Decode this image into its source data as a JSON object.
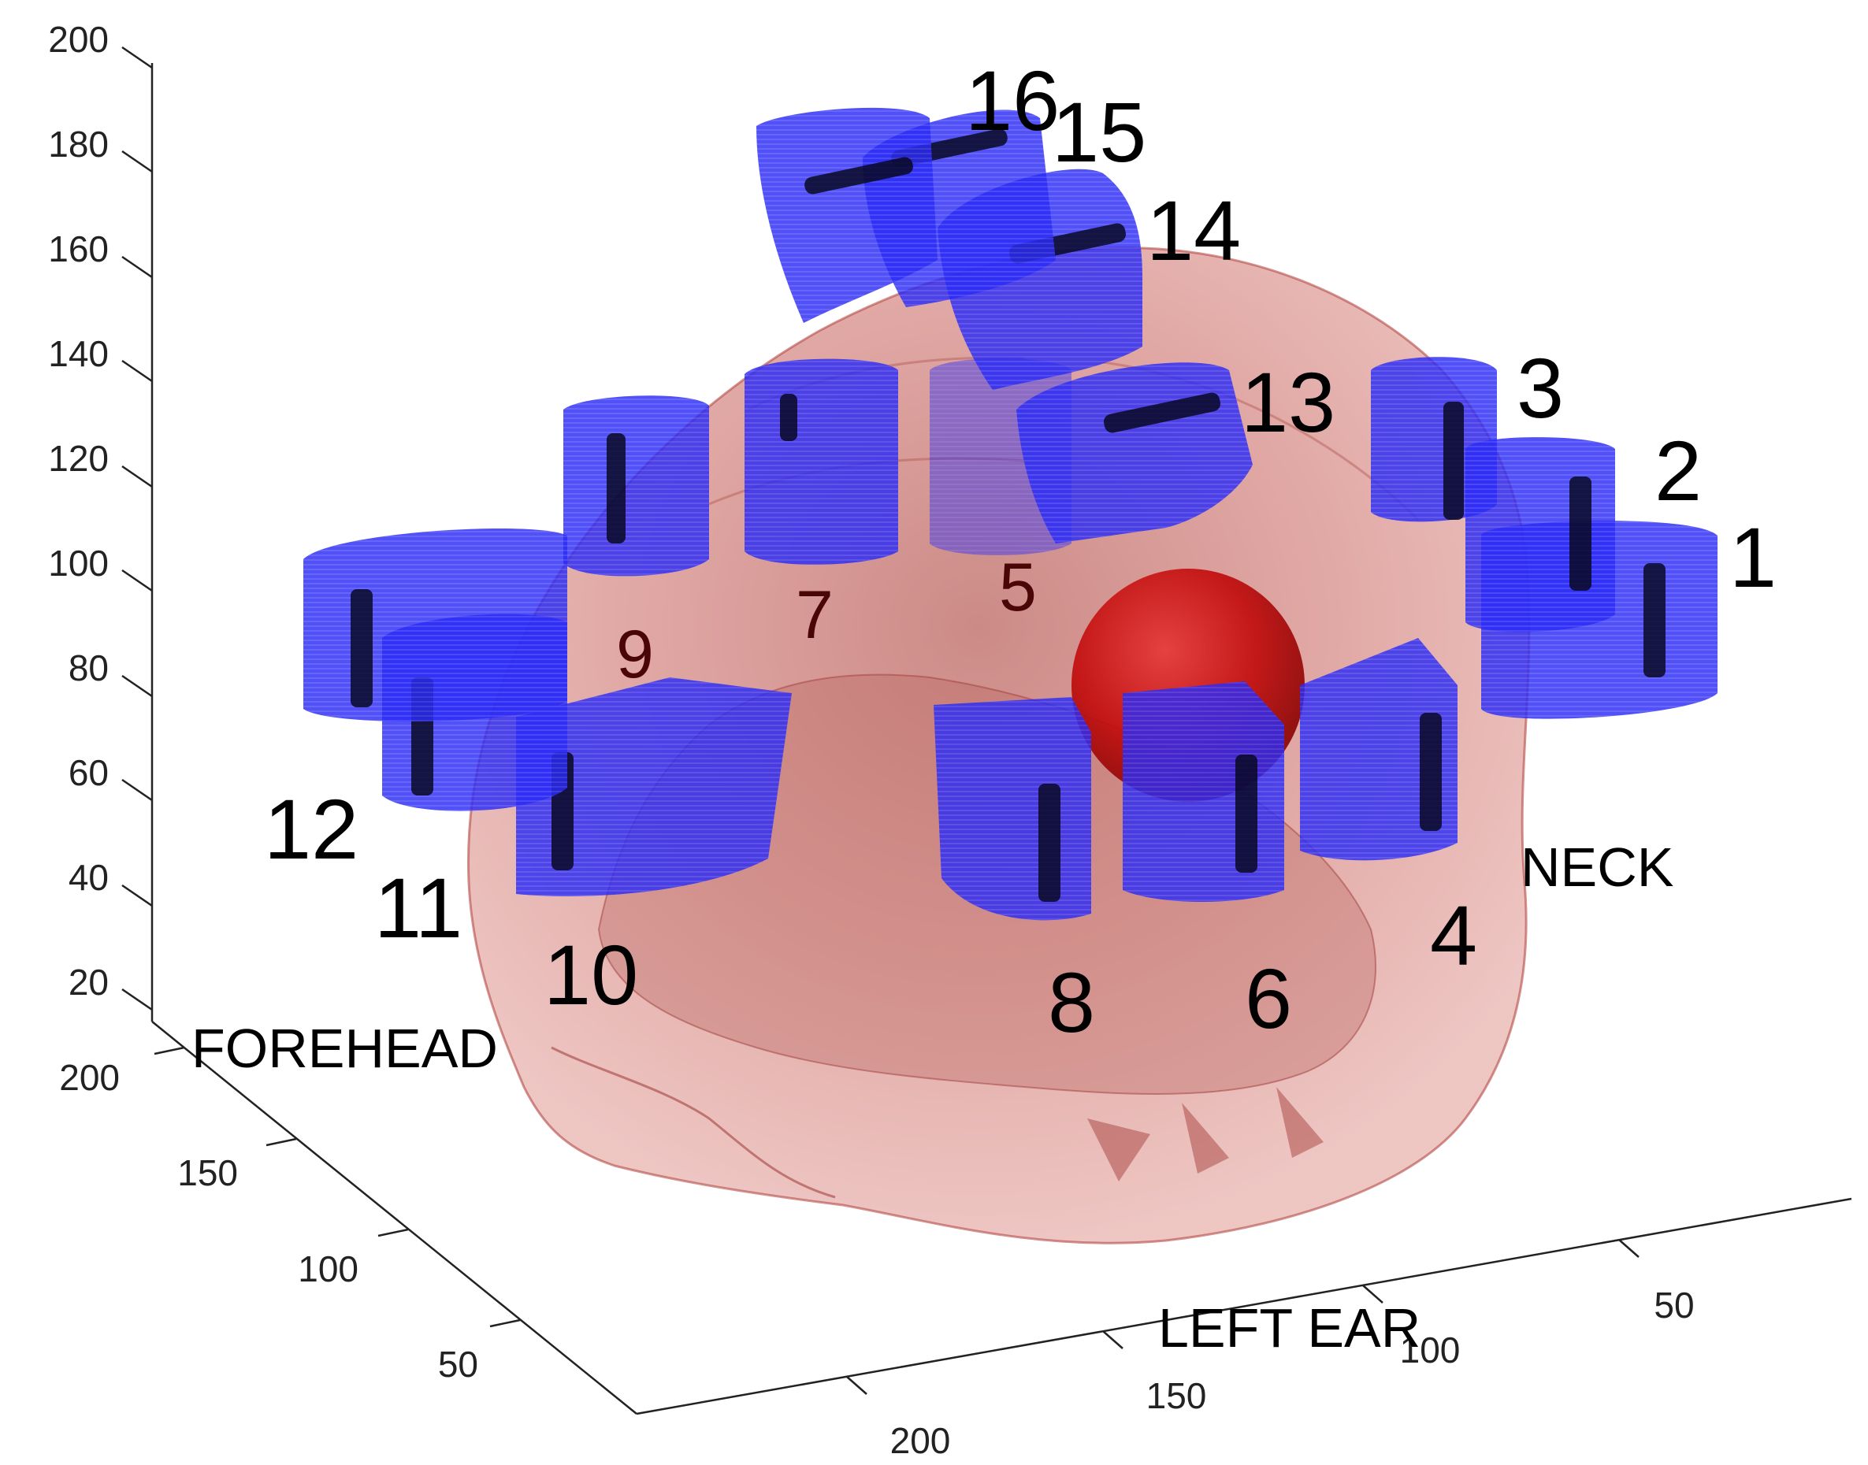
{
  "figure": {
    "z_axis_ticks": [
      "20",
      "40",
      "60",
      "80",
      "100",
      "120",
      "140",
      "160",
      "180",
      "200"
    ],
    "y_axis_ticks": [
      "50",
      "100",
      "150",
      "200"
    ],
    "x_axis_ticks": [
      "50",
      "100",
      "150",
      "200"
    ],
    "orientation_labels": {
      "forehead": "FOREHEAD",
      "left_ear": "LEFT EAR",
      "neck": "NECK"
    },
    "electrode_labels": [
      "1",
      "2",
      "3",
      "4",
      "5",
      "6",
      "7",
      "8",
      "9",
      "10",
      "11",
      "12",
      "13",
      "14",
      "15",
      "16"
    ],
    "colors": {
      "head": "#d98a86",
      "head_edge": "#a53a36",
      "electrode": "#2323f2",
      "electrode_light": "#4b4bff",
      "electrode_slot": "#06061c",
      "target_sphere": "#c40a0a"
    }
  }
}
